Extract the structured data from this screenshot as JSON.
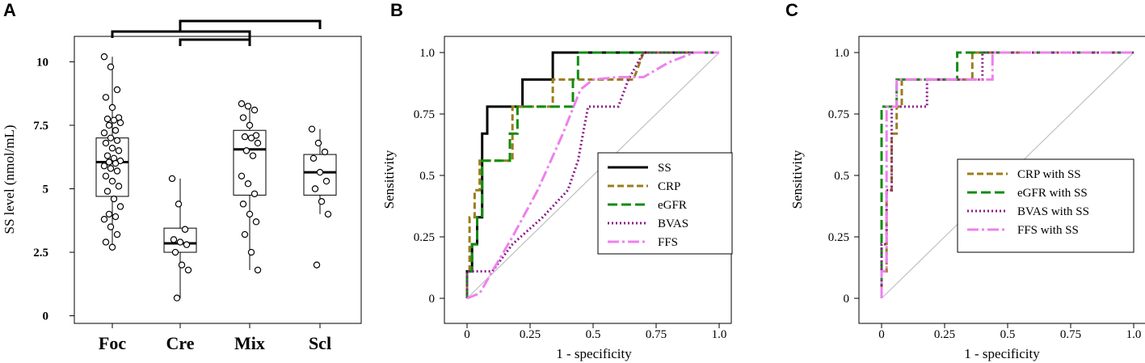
{
  "chart_data": [
    {
      "panel": "A",
      "type": "box",
      "ylabel": "SS level (nmol/mL)",
      "ylim": [
        -0.3,
        11.0
      ],
      "yticks": [
        0,
        2.5,
        5,
        7.5,
        10
      ],
      "ytick_labels": [
        "0",
        "2.5",
        "5",
        "7.5",
        "10"
      ],
      "categories": [
        "Foc",
        "Cre",
        "Mix",
        "Scl"
      ],
      "boxes": [
        {
          "name": "Foc",
          "q1": 4.7,
          "median": 6.05,
          "q3": 7.0,
          "whisker_low": 2.7,
          "whisker_high": 10.2
        },
        {
          "name": "Cre",
          "q1": 2.5,
          "median": 2.85,
          "q3": 3.45,
          "whisker_low": 0.7,
          "whisker_high": 5.4
        },
        {
          "name": "Mix",
          "q1": 4.75,
          "median": 6.55,
          "q3": 7.3,
          "whisker_low": 1.8,
          "whisker_high": 8.35
        },
        {
          "name": "Scl",
          "q1": 4.75,
          "median": 5.65,
          "q3": 6.35,
          "whisker_low": 4.0,
          "whisker_high": 7.35
        }
      ],
      "points": [
        [
          10.2,
          9.8,
          8.9,
          8.6,
          8.2,
          7.8,
          7.75,
          7.7,
          7.6,
          7.5,
          7.3,
          7.2,
          7.0,
          6.9,
          6.8,
          6.6,
          6.5,
          6.3,
          6.2,
          6.1,
          6.05,
          6.0,
          5.9,
          5.8,
          5.7,
          5.5,
          5.3,
          5.1,
          4.9,
          4.6,
          4.3,
          4.0,
          3.9,
          3.8,
          3.5,
          3.2,
          2.9,
          2.7
        ],
        [
          5.4,
          4.4,
          3.4,
          3.0,
          2.9,
          2.8,
          2.5,
          2.0,
          1.8,
          0.7
        ],
        [
          8.35,
          8.25,
          8.1,
          7.8,
          7.5,
          7.1,
          7.05,
          7.0,
          6.8,
          6.5,
          6.3,
          5.5,
          5.2,
          4.8,
          4.4,
          4.0,
          3.7,
          3.2,
          2.5,
          1.8
        ],
        [
          7.35,
          6.8,
          6.45,
          6.2,
          5.65,
          5.3,
          5.0,
          4.5,
          4.0,
          2.0
        ]
      ],
      "significance_brackets": [
        {
          "from": "Foc",
          "to": "Mix",
          "via": "Cre"
        },
        {
          "from": "Cre",
          "to": "Mix"
        },
        {
          "from": "Cre",
          "to": "Scl"
        }
      ]
    },
    {
      "panel": "B",
      "type": "line",
      "xlabel": "1 - specificity",
      "ylabel": "Sensitivity",
      "xlim": [
        0,
        1
      ],
      "ylim": [
        0,
        1
      ],
      "ticks": [
        0,
        0.25,
        0.5,
        0.75,
        1.0
      ],
      "xtick_labels": [
        "0",
        "0.25",
        "0.5",
        "0.75",
        "1.0"
      ],
      "ytick_labels": [
        "0",
        "0.25",
        "0.5",
        "0.75",
        "1.0"
      ],
      "legend_position": "center-right",
      "series": [
        {
          "name": "SS",
          "color": "#000000",
          "dash": "solid",
          "x": [
            0,
            0,
            0.02,
            0.02,
            0.04,
            0.04,
            0.06,
            0.06,
            0.08,
            0.08,
            0.1,
            0.1,
            0.22,
            0.22,
            0.34,
            0.34,
            1.0
          ],
          "y": [
            0,
            0.11,
            0.11,
            0.22,
            0.22,
            0.33,
            0.33,
            0.67,
            0.67,
            0.78,
            0.78,
            0.78,
            0.78,
            0.89,
            0.89,
            1.0,
            1.0
          ]
        },
        {
          "name": "CRP",
          "color": "#9a7d1c",
          "dash": "8,4",
          "x": [
            0,
            0,
            0.01,
            0.01,
            0.03,
            0.03,
            0.05,
            0.05,
            0.18,
            0.18,
            0.34,
            0.34,
            0.66,
            0.7,
            1.0
          ],
          "y": [
            0,
            0.11,
            0.11,
            0.33,
            0.33,
            0.44,
            0.44,
            0.56,
            0.56,
            0.78,
            0.78,
            0.89,
            0.89,
            1.0,
            1.0
          ]
        },
        {
          "name": "eGFR",
          "color": "#0f8c0f",
          "dash": "12,5",
          "x": [
            0,
            0,
            0.02,
            0.02,
            0.04,
            0.04,
            0.06,
            0.06,
            0.17,
            0.17,
            0.2,
            0.2,
            0.42,
            0.42,
            0.44,
            0.44,
            1.0
          ],
          "y": [
            0,
            0.11,
            0.11,
            0.22,
            0.22,
            0.33,
            0.33,
            0.56,
            0.56,
            0.67,
            0.67,
            0.78,
            0.78,
            0.89,
            0.89,
            1.0,
            1.0
          ]
        },
        {
          "name": "BVAS",
          "color": "#8b1a8b",
          "dash": "2,3",
          "x": [
            0,
            0,
            0.06,
            0.1,
            0.18,
            0.3,
            0.4,
            0.44,
            0.48,
            0.6,
            0.64,
            0.7,
            1.0
          ],
          "y": [
            0,
            0.11,
            0.11,
            0.11,
            0.22,
            0.33,
            0.44,
            0.56,
            0.78,
            0.78,
            0.89,
            1.0,
            1.0
          ]
        },
        {
          "name": "FFS",
          "color": "#ee80ee",
          "dash": "14,4,3,4",
          "x": [
            0,
            0.05,
            0.1,
            0.18,
            0.28,
            0.38,
            0.45,
            0.5,
            0.6,
            0.7,
            0.8,
            0.9,
            1.0
          ],
          "y": [
            0,
            0.02,
            0.11,
            0.25,
            0.44,
            0.67,
            0.85,
            0.89,
            0.9,
            0.9,
            0.96,
            1.0,
            1.0
          ]
        }
      ]
    },
    {
      "panel": "C",
      "type": "line",
      "xlabel": "1 - specificity",
      "ylabel": "Sensitivity",
      "xlim": [
        0,
        1
      ],
      "ylim": [
        0,
        1
      ],
      "ticks": [
        0,
        0.25,
        0.5,
        0.75,
        1.0
      ],
      "xtick_labels": [
        "0",
        "0.25",
        "0.5",
        "0.75",
        "1.0"
      ],
      "ytick_labels": [
        "0",
        "0.25",
        "0.5",
        "0.75",
        "1.0"
      ],
      "legend_position": "center-right",
      "series": [
        {
          "name": "CRP  with SS",
          "color": "#9a7d1c",
          "dash": "8,4",
          "x": [
            0,
            0,
            0.02,
            0.02,
            0.04,
            0.04,
            0.06,
            0.06,
            0.08,
            0.08,
            0.36,
            0.36,
            1.0
          ],
          "y": [
            0,
            0.11,
            0.11,
            0.44,
            0.44,
            0.67,
            0.67,
            0.78,
            0.78,
            0.89,
            0.89,
            1.0,
            1.0
          ]
        },
        {
          "name": "eGFR  with SS",
          "color": "#0f8c0f",
          "dash": "12,5",
          "x": [
            0,
            0,
            0.02,
            0.02,
            0.06,
            0.06,
            0.3,
            0.3,
            1.0
          ],
          "y": [
            0,
            0.78,
            0.78,
            0.78,
            0.78,
            0.89,
            0.89,
            1.0,
            1.0
          ]
        },
        {
          "name": "BVAS  with SS",
          "color": "#8b1a8b",
          "dash": "2,3",
          "x": [
            0,
            0,
            0.02,
            0.02,
            0.04,
            0.04,
            0.12,
            0.12,
            0.18,
            0.18,
            0.4,
            0.4,
            1.0
          ],
          "y": [
            0,
            0.22,
            0.22,
            0.44,
            0.44,
            0.78,
            0.78,
            0.78,
            0.78,
            0.89,
            0.89,
            1.0,
            1.0
          ]
        },
        {
          "name": "FFS  with SS",
          "color": "#ee80ee",
          "dash": "14,4,3,4",
          "x": [
            0,
            0,
            0.02,
            0.02,
            0.06,
            0.06,
            0.1,
            0.1,
            0.44,
            0.44,
            1.0
          ],
          "y": [
            0,
            0.11,
            0.11,
            0.78,
            0.78,
            0.89,
            0.89,
            0.89,
            0.89,
            1.0,
            1.0
          ]
        }
      ]
    }
  ]
}
